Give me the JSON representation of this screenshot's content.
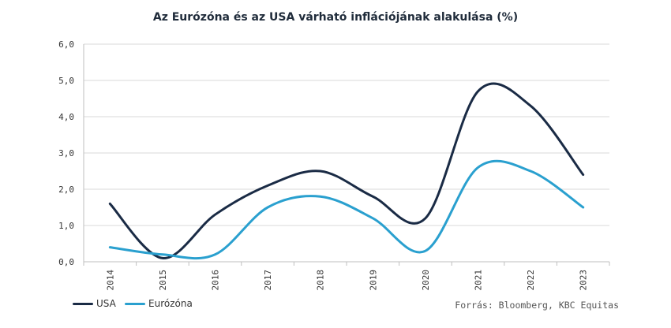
{
  "chart_data": {
    "type": "line",
    "title": "Az Eurózóna és az USA várható inflációjának alakulása (%)",
    "categories": [
      "2014",
      "2015",
      "2016",
      "2017",
      "2018",
      "2019",
      "2020",
      "2021",
      "2022",
      "2023"
    ],
    "ylim": [
      0,
      6
    ],
    "yticks": [
      "0,0",
      "1,0",
      "2,0",
      "3,0",
      "4,0",
      "5,0",
      "6,0"
    ],
    "grid": true,
    "legend_position": "bottom-left",
    "series": [
      {
        "name": "USA",
        "color": "#1a2b45",
        "values": [
          1.6,
          0.1,
          1.3,
          2.1,
          2.5,
          1.8,
          1.2,
          4.7,
          4.3,
          2.4
        ]
      },
      {
        "name": "Eurózóna",
        "color": "#2aa0cf",
        "values": [
          0.4,
          0.2,
          0.2,
          1.5,
          1.8,
          1.2,
          0.3,
          2.6,
          2.5,
          1.5
        ]
      }
    ]
  },
  "source_note": "Forrás: Bloomberg, KBC Equitas"
}
